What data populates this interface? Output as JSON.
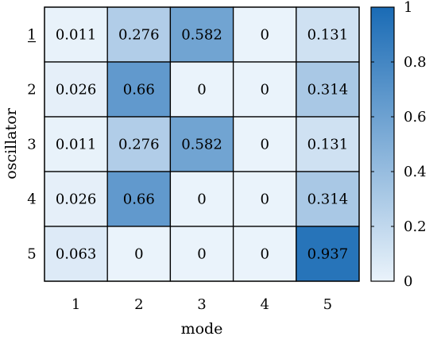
{
  "chart_data": {
    "type": "heatmap",
    "title": "",
    "xlabel": "mode",
    "ylabel": "oscillator",
    "x_categories": [
      "1",
      "2",
      "3",
      "4",
      "5"
    ],
    "y_categories": [
      "1",
      "2",
      "3",
      "4",
      "5"
    ],
    "y_first_label_underlined": true,
    "values": [
      [
        "0.011",
        "0.276",
        "0.582",
        "0",
        "0.131"
      ],
      [
        "0.026",
        "0.66",
        "0",
        "0",
        "0.314"
      ],
      [
        "0.011",
        "0.276",
        "0.582",
        "0",
        "0.131"
      ],
      [
        "0.026",
        "0.66",
        "0",
        "0",
        "0.314"
      ],
      [
        "0.063",
        "0",
        "0",
        "0",
        "0.937"
      ]
    ],
    "colorbar": {
      "min": 0,
      "max": 1,
      "ticks": [
        "0",
        "0.2",
        "0.4",
        "0.6",
        "0.8",
        "1"
      ],
      "color_low": "#eaf3fb",
      "color_high": "#1a6bb5"
    },
    "grid": true,
    "legend": "colorbar-right"
  }
}
